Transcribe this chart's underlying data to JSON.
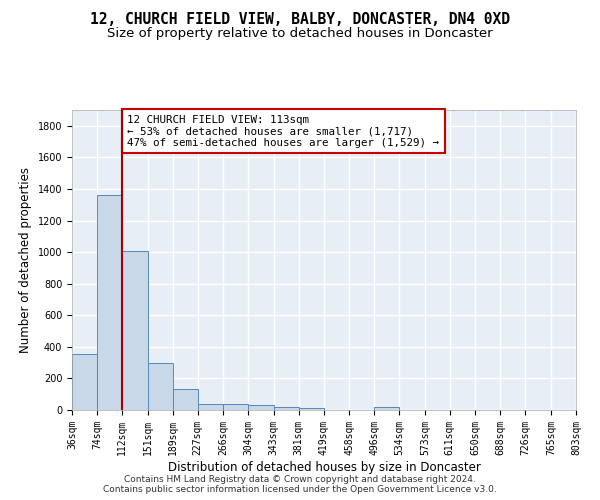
{
  "title": "12, CHURCH FIELD VIEW, BALBY, DONCASTER, DN4 0XD",
  "subtitle": "Size of property relative to detached houses in Doncaster",
  "xlabel": "Distribution of detached houses by size in Doncaster",
  "ylabel": "Number of detached properties",
  "bar_edges": [
    36,
    74,
    112,
    151,
    189,
    227,
    266,
    304,
    343,
    381,
    419,
    458,
    496,
    534,
    573,
    611,
    650,
    688,
    726,
    765,
    803
  ],
  "bar_heights": [
    355,
    1360,
    1010,
    295,
    130,
    40,
    35,
    30,
    20,
    15,
    0,
    0,
    20,
    0,
    0,
    0,
    0,
    0,
    0,
    0
  ],
  "bar_color": "#c8d8e8",
  "bar_edgecolor": "#5588bb",
  "vline_x": 112,
  "vline_color": "#aa0000",
  "annotation_line1": "12 CHURCH FIELD VIEW: 113sqm",
  "annotation_line2": "← 53% of detached houses are smaller (1,717)",
  "annotation_line3": "47% of semi-detached houses are larger (1,529) →",
  "annotation_box_color": "#ffffff",
  "annotation_box_edgecolor": "#cc0000",
  "ylim": [
    0,
    1900
  ],
  "xlim": [
    36,
    803
  ],
  "yticks": [
    0,
    200,
    400,
    600,
    800,
    1000,
    1200,
    1400,
    1600,
    1800
  ],
  "tick_labels": [
    "36sqm",
    "74sqm",
    "112sqm",
    "151sqm",
    "189sqm",
    "227sqm",
    "266sqm",
    "304sqm",
    "343sqm",
    "381sqm",
    "419sqm",
    "458sqm",
    "496sqm",
    "534sqm",
    "573sqm",
    "611sqm",
    "650sqm",
    "688sqm",
    "726sqm",
    "765sqm",
    "803sqm"
  ],
  "footer_text": "Contains HM Land Registry data © Crown copyright and database right 2024.\nContains public sector information licensed under the Open Government Licence v3.0.",
  "bg_color": "#e8eef5",
  "grid_color": "#ffffff",
  "fig_bg_color": "#ffffff",
  "title_fontsize": 10.5,
  "subtitle_fontsize": 9.5,
  "axis_label_fontsize": 8.5,
  "tick_fontsize": 7,
  "annotation_fontsize": 7.8,
  "footer_fontsize": 6.5
}
